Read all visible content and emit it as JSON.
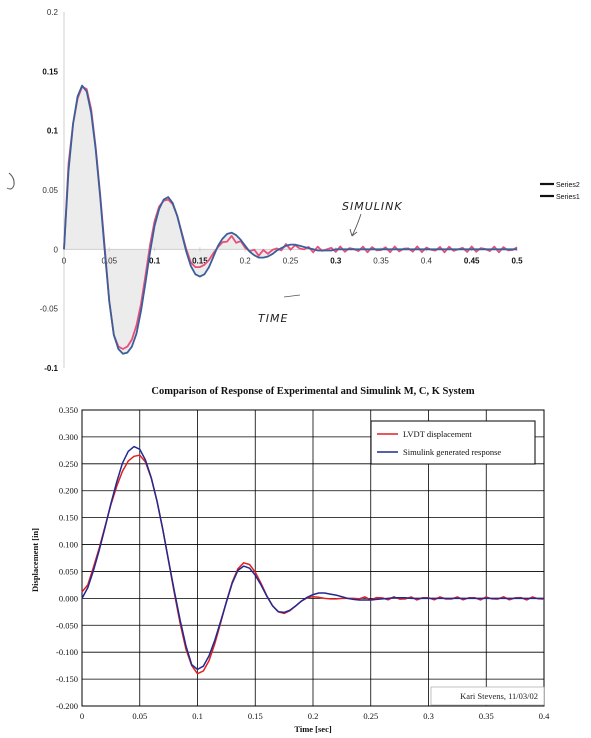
{
  "chart_data": [
    {
      "type": "line",
      "title": "",
      "xlabel": "",
      "ylabel": "",
      "xlim": [
        0,
        0.5
      ],
      "ylim": [
        -0.1,
        0.2
      ],
      "x_ticks": [
        "0",
        "0.05",
        "0.1",
        "0.15",
        "0.2",
        "0.25",
        "0.3",
        "0.35",
        "0.4",
        "0.45",
        "0.5"
      ],
      "y_ticks": [
        "0.2",
        "0.15",
        "0.1",
        "0.05",
        "0",
        "-0.05",
        "-0.1"
      ],
      "grid": false,
      "legend_position": "right",
      "legend": [
        "Series2",
        "Series1"
      ],
      "annotations": [
        "SIMULINK",
        "TIME"
      ],
      "series": [
        {
          "name": "Series2",
          "color": "#3b5f9a",
          "x": [
            0,
            0.005,
            0.01,
            0.015,
            0.02,
            0.025,
            0.03,
            0.035,
            0.04,
            0.045,
            0.05,
            0.055,
            0.06,
            0.065,
            0.07,
            0.075,
            0.08,
            0.085,
            0.09,
            0.095,
            0.1,
            0.105,
            0.11,
            0.115,
            0.12,
            0.125,
            0.13,
            0.135,
            0.14,
            0.145,
            0.15,
            0.155,
            0.16,
            0.165,
            0.17,
            0.175,
            0.18,
            0.185,
            0.19,
            0.195,
            0.2,
            0.205,
            0.21,
            0.215,
            0.22,
            0.225,
            0.23,
            0.235,
            0.24,
            0.245,
            0.25,
            0.255,
            0.26,
            0.265,
            0.27,
            0.275,
            0.28,
            0.285,
            0.29,
            0.295,
            0.3,
            0.305,
            0.31,
            0.315,
            0.32,
            0.325,
            0.33,
            0.335,
            0.34,
            0.345,
            0.35,
            0.355,
            0.36,
            0.365,
            0.37,
            0.375,
            0.38,
            0.385,
            0.39,
            0.395,
            0.4,
            0.405,
            0.41,
            0.415,
            0.42,
            0.425,
            0.43,
            0.435,
            0.44,
            0.445,
            0.45,
            0.455,
            0.46,
            0.465,
            0.47,
            0.475,
            0.48,
            0.485,
            0.49,
            0.495,
            0.5
          ],
          "y": [
            0.0,
            0.066,
            0.106,
            0.129,
            0.138,
            0.133,
            0.115,
            0.084,
            0.044,
            -0.002,
            -0.044,
            -0.072,
            -0.084,
            -0.088,
            -0.087,
            -0.082,
            -0.071,
            -0.052,
            -0.028,
            -0.002,
            0.02,
            0.034,
            0.042,
            0.044,
            0.039,
            0.028,
            0.013,
            -0.002,
            -0.014,
            -0.021,
            -0.023,
            -0.021,
            -0.015,
            -0.006,
            0.003,
            0.009,
            0.013,
            0.014,
            0.012,
            0.008,
            0.003,
            -0.002,
            -0.005,
            -0.007,
            -0.007,
            -0.006,
            -0.004,
            -0.001,
            0.001,
            0.003,
            0.004,
            0.004,
            0.003,
            0.002,
            0.001,
            0.0,
            -0.001,
            -0.001,
            -0.001,
            -0.001,
            0.0,
            0.0,
            0.0,
            0.0,
            0.0,
            0.0,
            0.0,
            0.0,
            0.0,
            0.0,
            0.0,
            0.0,
            0.0,
            0.0,
            0.0,
            0.0,
            0.0,
            0.0,
            0.0,
            0.0,
            0.0,
            0.0,
            0.0,
            0.0,
            0.0,
            0.0,
            0.0,
            0.0,
            0.0,
            0.0,
            0.0,
            0.0,
            0.0,
            0.0,
            0.0,
            0.0,
            0.0,
            0.0,
            0.0,
            0.0,
            0.0
          ]
        },
        {
          "name": "Series1",
          "color": "#e8507a",
          "x": [
            0,
            0.005,
            0.01,
            0.015,
            0.02,
            0.025,
            0.03,
            0.035,
            0.04,
            0.045,
            0.05,
            0.055,
            0.06,
            0.065,
            0.07,
            0.075,
            0.08,
            0.085,
            0.09,
            0.095,
            0.1,
            0.105,
            0.11,
            0.115,
            0.12,
            0.125,
            0.13,
            0.135,
            0.14,
            0.145,
            0.15,
            0.155,
            0.16,
            0.165,
            0.17,
            0.175,
            0.18,
            0.185,
            0.19,
            0.195,
            0.2,
            0.205,
            0.21,
            0.215,
            0.22,
            0.225,
            0.23,
            0.235,
            0.24,
            0.245,
            0.25,
            0.255,
            0.26,
            0.265,
            0.27,
            0.275,
            0.28,
            0.285,
            0.29,
            0.295,
            0.3,
            0.305,
            0.31,
            0.315,
            0.32,
            0.325,
            0.33,
            0.335,
            0.34,
            0.345,
            0.35,
            0.355,
            0.36,
            0.365,
            0.37,
            0.375,
            0.38,
            0.385,
            0.39,
            0.395,
            0.4,
            0.405,
            0.41,
            0.415,
            0.42,
            0.425,
            0.43,
            0.435,
            0.44,
            0.445,
            0.45,
            0.455,
            0.46,
            0.465,
            0.47,
            0.475,
            0.48,
            0.485,
            0.49,
            0.495,
            0.5
          ],
          "y": [
            0.0,
            0.072,
            0.106,
            0.127,
            0.137,
            0.135,
            0.118,
            0.086,
            0.046,
            0.001,
            -0.044,
            -0.072,
            -0.082,
            -0.084,
            -0.082,
            -0.076,
            -0.064,
            -0.046,
            -0.022,
            0.004,
            0.024,
            0.036,
            0.041,
            0.042,
            0.038,
            0.028,
            0.014,
            0.0,
            -0.011,
            -0.015,
            -0.015,
            -0.013,
            -0.009,
            -0.003,
            0.002,
            0.006,
            0.008,
            0.009,
            0.008,
            0.005,
            0.002,
            -0.001,
            -0.002,
            -0.003,
            -0.003,
            -0.002,
            -0.001,
            0.0,
            0.001,
            0.002,
            0.002,
            0.002,
            0.001,
            0.001,
            0.0,
            0.0,
            0.0,
            0.0,
            0.0,
            0.0,
            0.0,
            0.0,
            0.0,
            0.0,
            0.0,
            0.0,
            0.0,
            0.0,
            0.0,
            0.0,
            0.0,
            0.0,
            0.0,
            0.0,
            0.0,
            0.0,
            0.0,
            0.0,
            0.0,
            0.0,
            0.0,
            0.0,
            0.0,
            0.0,
            0.0,
            0.0,
            0.0,
            0.0,
            0.0,
            0.0,
            0.0,
            0.0,
            0.0,
            0.0,
            0.0,
            0.0,
            0.0,
            0.0,
            0.0,
            0.0,
            0.0
          ]
        }
      ]
    },
    {
      "type": "line",
      "title": "Comparison of Response of Experimental and Simulink M, C, K System",
      "xlabel": "Time [sec]",
      "ylabel": "Displacement [in]",
      "xlim": [
        0,
        0.4
      ],
      "ylim": [
        -0.2,
        0.35
      ],
      "x_ticks": [
        "0",
        "0.05",
        "0.1",
        "0.15",
        "0.2",
        "0.25",
        "0.3",
        "0.35",
        "0.4"
      ],
      "y_ticks": [
        "0.350",
        "0.300",
        "0.250",
        "0.200",
        "0.150",
        "0.100",
        "0.050",
        "0.000",
        "-0.050",
        "-0.100",
        "-0.150",
        "-0.200"
      ],
      "grid": true,
      "legend_position": "top-right",
      "legend": [
        "LVDT displacement",
        "Simulink generated response"
      ],
      "annotations": [
        "Kari Stevens, 11/03/02"
      ],
      "series": [
        {
          "name": "LVDT displacement",
          "color": "#e02020",
          "x": [
            0,
            0.005,
            0.01,
            0.015,
            0.02,
            0.025,
            0.03,
            0.035,
            0.04,
            0.045,
            0.05,
            0.055,
            0.06,
            0.065,
            0.07,
            0.075,
            0.08,
            0.085,
            0.09,
            0.095,
            0.1,
            0.105,
            0.11,
            0.115,
            0.12,
            0.125,
            0.13,
            0.135,
            0.14,
            0.145,
            0.15,
            0.155,
            0.16,
            0.165,
            0.17,
            0.175,
            0.18,
            0.185,
            0.19,
            0.195,
            0.2,
            0.205,
            0.21,
            0.215,
            0.22,
            0.225,
            0.23,
            0.235,
            0.24,
            0.245,
            0.25,
            0.255,
            0.26,
            0.265,
            0.27,
            0.275,
            0.28,
            0.285,
            0.29,
            0.295,
            0.3,
            0.305,
            0.31,
            0.315,
            0.32,
            0.325,
            0.33,
            0.335,
            0.34,
            0.345,
            0.35,
            0.355,
            0.36,
            0.365,
            0.37,
            0.375,
            0.38,
            0.385,
            0.39,
            0.395,
            0.4
          ],
          "y": [
            0.012,
            0.025,
            0.058,
            0.094,
            0.134,
            0.174,
            0.208,
            0.236,
            0.255,
            0.264,
            0.266,
            0.253,
            0.223,
            0.18,
            0.127,
            0.069,
            0.009,
            -0.047,
            -0.094,
            -0.125,
            -0.14,
            -0.135,
            -0.116,
            -0.084,
            -0.046,
            -0.006,
            0.03,
            0.055,
            0.066,
            0.063,
            0.049,
            0.028,
            0.005,
            -0.014,
            -0.025,
            -0.028,
            -0.023,
            -0.014,
            -0.005,
            0.001,
            0.003,
            0.002,
            0.0,
            -0.001,
            -0.001,
            0.0,
            0.0,
            0.0,
            0.0,
            0.0,
            0.0,
            0.0,
            0.0,
            0.0,
            0.0,
            0.0,
            0.0,
            0.0,
            0.0,
            0.0,
            0.0,
            0.0,
            0.0,
            0.0,
            0.0,
            0.0,
            0.0,
            0.0,
            0.0,
            0.0,
            0.0,
            0.0,
            0.0,
            0.0,
            0.0,
            0.0,
            0.0,
            0.0,
            0.0,
            0.0,
            0.0
          ]
        },
        {
          "name": "Simulink generated response",
          "color": "#202a90",
          "x": [
            0,
            0.005,
            0.01,
            0.015,
            0.02,
            0.025,
            0.03,
            0.035,
            0.04,
            0.045,
            0.05,
            0.055,
            0.06,
            0.065,
            0.07,
            0.075,
            0.08,
            0.085,
            0.09,
            0.095,
            0.1,
            0.105,
            0.11,
            0.115,
            0.12,
            0.125,
            0.13,
            0.135,
            0.14,
            0.145,
            0.15,
            0.155,
            0.16,
            0.165,
            0.17,
            0.175,
            0.18,
            0.185,
            0.19,
            0.195,
            0.2,
            0.205,
            0.21,
            0.215,
            0.22,
            0.225,
            0.23,
            0.235,
            0.24,
            0.245,
            0.25,
            0.255,
            0.26,
            0.265,
            0.27,
            0.275,
            0.28,
            0.285,
            0.29,
            0.295,
            0.3,
            0.305,
            0.31,
            0.315,
            0.32,
            0.325,
            0.33,
            0.335,
            0.34,
            0.345,
            0.35,
            0.355,
            0.36,
            0.365,
            0.37,
            0.375,
            0.38,
            0.385,
            0.39,
            0.395,
            0.4
          ],
          "y": [
            0.0,
            0.02,
            0.052,
            0.09,
            0.132,
            0.176,
            0.216,
            0.251,
            0.273,
            0.282,
            0.277,
            0.257,
            0.224,
            0.18,
            0.127,
            0.07,
            0.013,
            -0.041,
            -0.088,
            -0.123,
            -0.132,
            -0.126,
            -0.107,
            -0.078,
            -0.043,
            -0.007,
            0.028,
            0.052,
            0.06,
            0.056,
            0.043,
            0.025,
            0.004,
            -0.014,
            -0.025,
            -0.026,
            -0.022,
            -0.014,
            -0.005,
            0.002,
            0.007,
            0.01,
            0.01,
            0.008,
            0.006,
            0.003,
            0.0,
            -0.002,
            -0.003,
            -0.003,
            -0.003,
            -0.002,
            -0.001,
            0.0,
            0.001,
            0.001,
            0.001,
            0.0,
            0.0,
            0.0,
            0.0,
            0.0,
            0.0,
            0.0,
            0.0,
            0.0,
            0.0,
            0.0,
            0.0,
            0.0,
            0.0,
            0.0,
            0.0,
            0.0,
            0.0,
            0.0,
            0.0,
            0.0,
            0.0,
            0.0,
            0.0
          ]
        }
      ]
    }
  ]
}
